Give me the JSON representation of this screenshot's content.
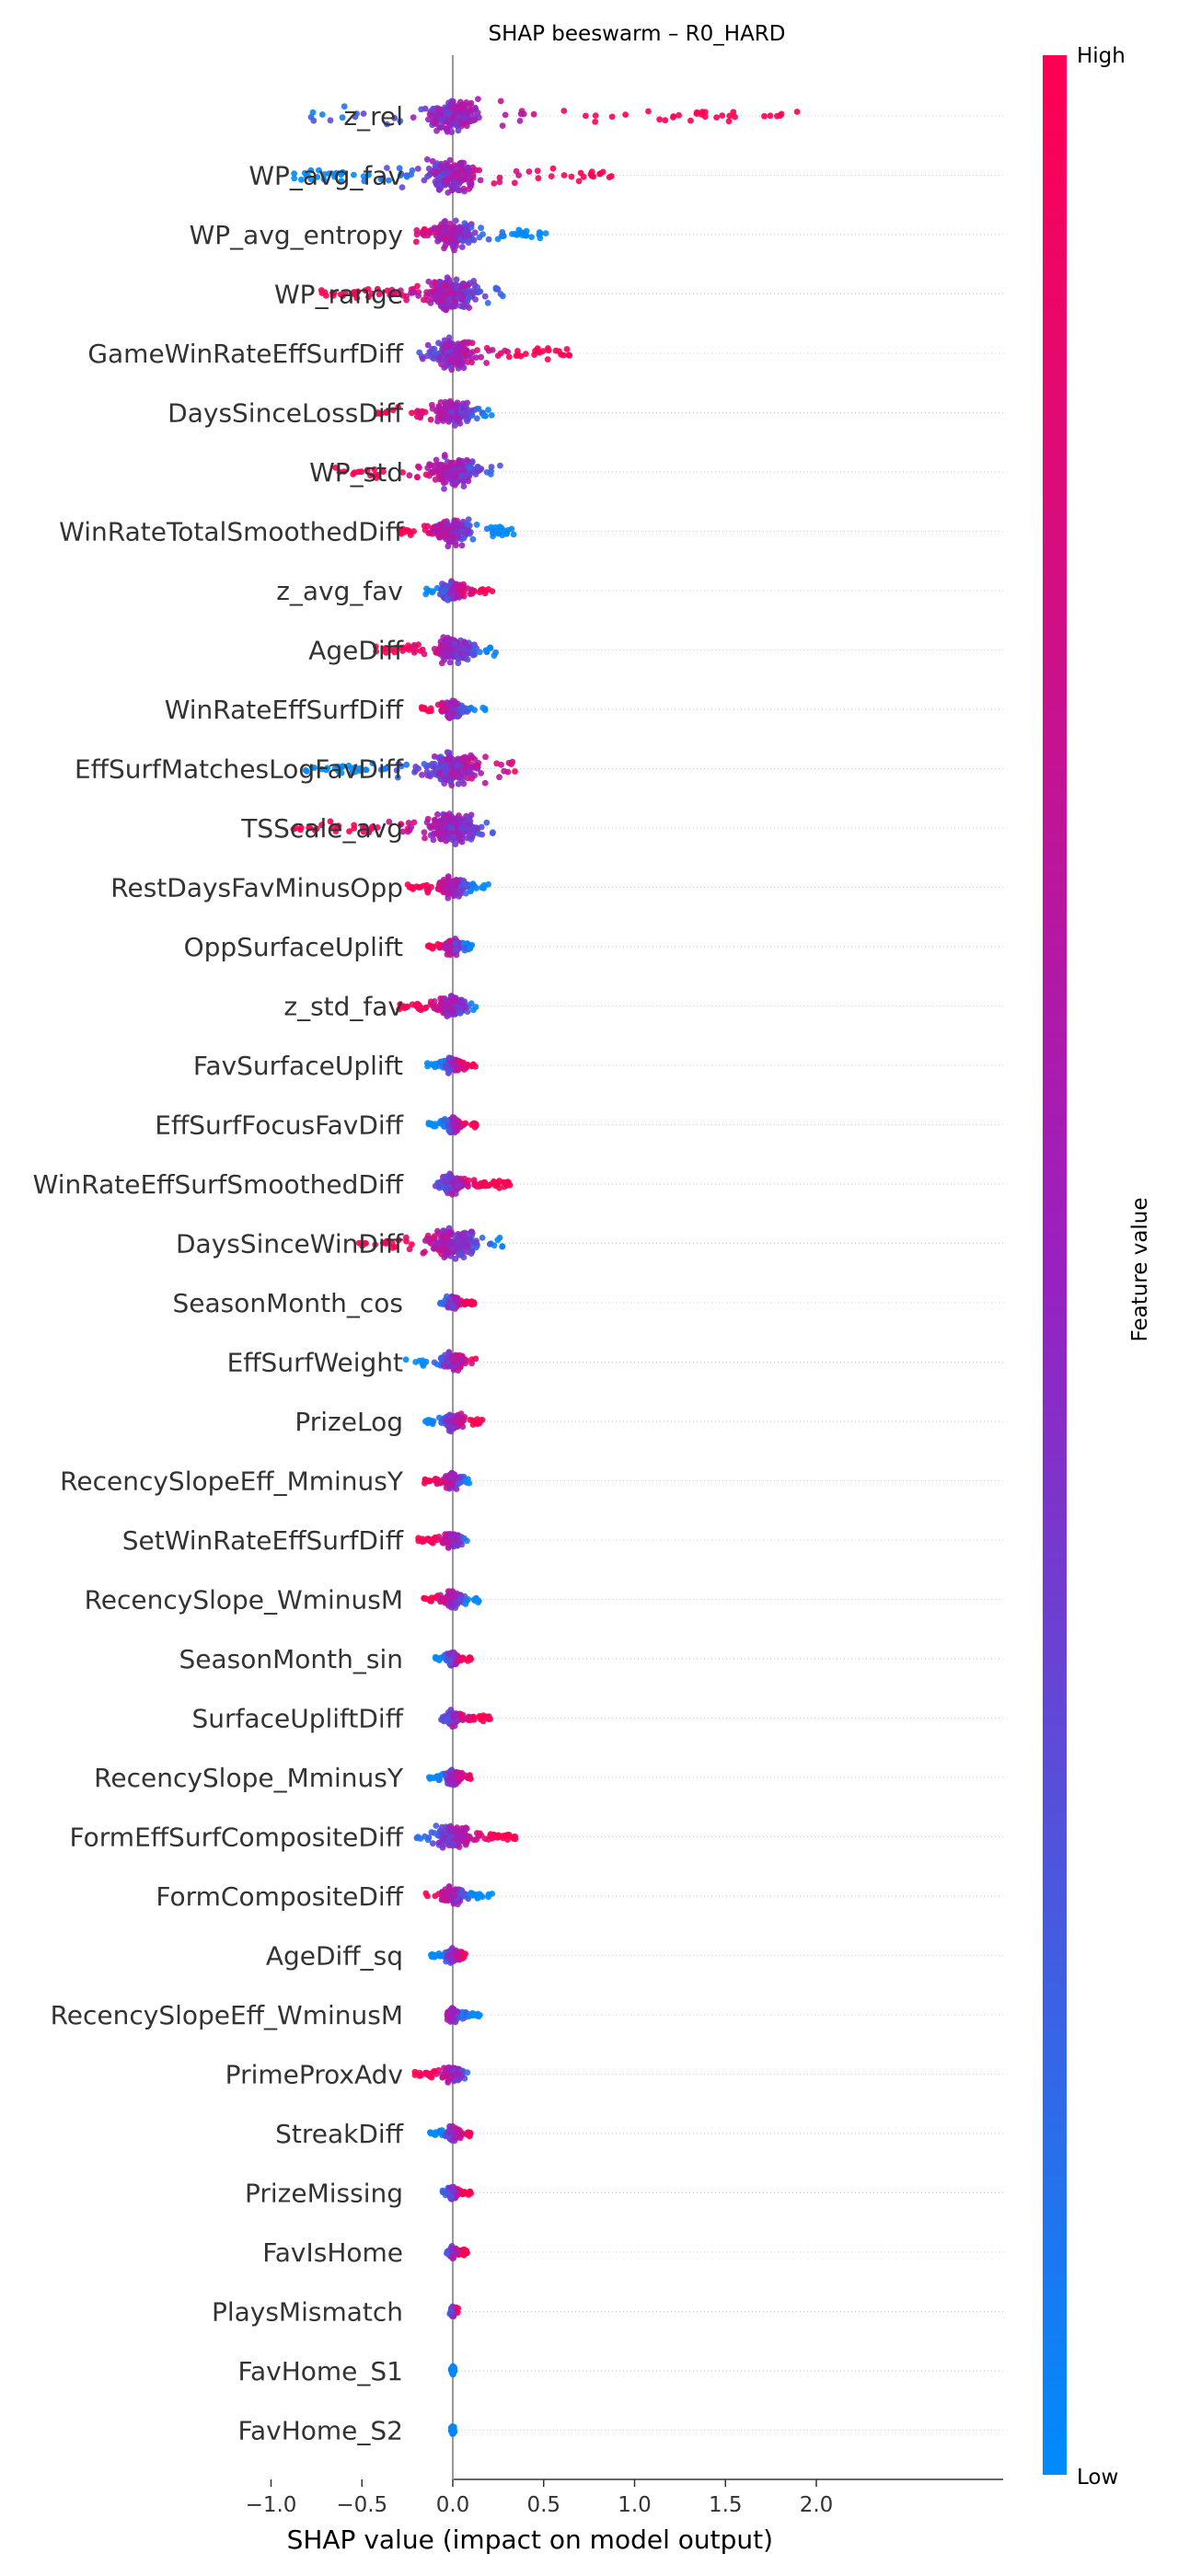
{
  "chart_data": {
    "type": "scatter",
    "subtype": "shap-beeswarm",
    "title": "SHAP beeswarm – R0_HARD",
    "xlabel": "SHAP value (impact on model output)",
    "ylabel": "",
    "xlim": [
      -1.1,
      2.05
    ],
    "xticks": [
      -1.0,
      -0.5,
      0.0,
      0.5,
      1.0,
      1.5,
      2.0
    ],
    "xtick_labels": [
      "−1.0",
      "−0.5",
      "0.0",
      "0.5",
      "1.0",
      "1.5",
      "2.0"
    ],
    "zero_line": true,
    "grid": "horizontal dotted per feature",
    "colorbar": {
      "label": "Feature value",
      "high_label": "High",
      "low_label": "Low",
      "low_color": "#008bfb",
      "high_color": "#ff0052"
    },
    "features": [
      {
        "name": "z_rel",
        "min": -0.8,
        "max": 1.9,
        "high_side": "right"
      },
      {
        "name": "WP_avg_fav",
        "min": -0.88,
        "max": 0.88,
        "high_side": "right"
      },
      {
        "name": "WP_avg_entropy",
        "min": -0.22,
        "max": 0.52,
        "high_side": "left"
      },
      {
        "name": "WP_range",
        "min": -0.75,
        "max": 0.28,
        "high_side": "left"
      },
      {
        "name": "GameWinRateEffSurfDiff",
        "min": -0.22,
        "max": 0.65,
        "high_side": "right"
      },
      {
        "name": "DaysSinceLossDiff",
        "min": -0.42,
        "max": 0.22,
        "high_side": "left"
      },
      {
        "name": "WP_std",
        "min": -0.65,
        "max": 0.27,
        "high_side": "left"
      },
      {
        "name": "WinRateTotalSmoothedDiff",
        "min": -0.33,
        "max": 0.36,
        "high_side": "left"
      },
      {
        "name": "z_avg_fav",
        "min": -0.17,
        "max": 0.22,
        "high_side": "right"
      },
      {
        "name": "AgeDiff",
        "min": -0.45,
        "max": 0.25,
        "high_side": "left"
      },
      {
        "name": "WinRateEffSurfDiff",
        "min": -0.18,
        "max": 0.18,
        "high_side": "left"
      },
      {
        "name": "EffSurfMatchesLogFavDiff",
        "min": -0.88,
        "max": 0.36,
        "high_side": "right"
      },
      {
        "name": "TSScale_avg",
        "min": -0.88,
        "max": 0.23,
        "high_side": "left"
      },
      {
        "name": "RestDaysFavMinusOpp",
        "min": -0.25,
        "max": 0.2,
        "high_side": "left"
      },
      {
        "name": "OppSurfaceUplift",
        "min": -0.15,
        "max": 0.12,
        "high_side": "left"
      },
      {
        "name": "z_std_fav",
        "min": -0.32,
        "max": 0.13,
        "high_side": "left"
      },
      {
        "name": "FavSurfaceUplift",
        "min": -0.15,
        "max": 0.13,
        "high_side": "right"
      },
      {
        "name": "EffSurfFocusFavDiff",
        "min": -0.14,
        "max": 0.13,
        "high_side": "right"
      },
      {
        "name": "WinRateEffSurfSmoothedDiff",
        "min": -0.12,
        "max": 0.32,
        "high_side": "right"
      },
      {
        "name": "DaysSinceWinDiff",
        "min": -0.55,
        "max": 0.28,
        "high_side": "left"
      },
      {
        "name": "SeasonMonth_cos",
        "min": -0.07,
        "max": 0.13,
        "high_side": "right"
      },
      {
        "name": "EffSurfWeight",
        "min": -0.26,
        "max": 0.13,
        "high_side": "right"
      },
      {
        "name": "PrizeLog",
        "min": -0.16,
        "max": 0.18,
        "high_side": "right"
      },
      {
        "name": "RecencySlopeEff_MminusY",
        "min": -0.17,
        "max": 0.1,
        "high_side": "left"
      },
      {
        "name": "SetWinRateEffSurfDiff",
        "min": -0.2,
        "max": 0.08,
        "high_side": "left"
      },
      {
        "name": "RecencySlope_WminusM",
        "min": -0.18,
        "max": 0.15,
        "high_side": "left"
      },
      {
        "name": "SeasonMonth_sin",
        "min": -0.1,
        "max": 0.1,
        "high_side": "right"
      },
      {
        "name": "SurfaceUpliftDiff",
        "min": -0.08,
        "max": 0.21,
        "high_side": "right"
      },
      {
        "name": "RecencySlope_MminusY",
        "min": -0.14,
        "max": 0.1,
        "high_side": "right"
      },
      {
        "name": "FormEffSurfCompositeDiff",
        "min": -0.2,
        "max": 0.38,
        "high_side": "right"
      },
      {
        "name": "FormCompositeDiff",
        "min": -0.15,
        "max": 0.22,
        "high_side": "left"
      },
      {
        "name": "AgeDiff_sq",
        "min": -0.13,
        "max": 0.08,
        "high_side": "right"
      },
      {
        "name": "RecencySlopeEff_WminusM",
        "min": -0.04,
        "max": 0.15,
        "high_side": "left"
      },
      {
        "name": "PrimeProxAdv",
        "min": -0.22,
        "max": 0.1,
        "high_side": "left"
      },
      {
        "name": "StreakDiff",
        "min": -0.14,
        "max": 0.1,
        "high_side": "right"
      },
      {
        "name": "PrizeMissing",
        "min": -0.06,
        "max": 0.1,
        "high_side": "right"
      },
      {
        "name": "FavIsHome",
        "min": -0.04,
        "max": 0.08,
        "high_side": "right"
      },
      {
        "name": "PlaysMismatch",
        "min": -0.02,
        "max": 0.03,
        "high_side": "right"
      },
      {
        "name": "FavHome_S1",
        "min": -0.01,
        "max": 0.01,
        "high_side": "none"
      },
      {
        "name": "FavHome_S2",
        "min": -0.01,
        "max": 0.01,
        "high_side": "none"
      }
    ]
  }
}
